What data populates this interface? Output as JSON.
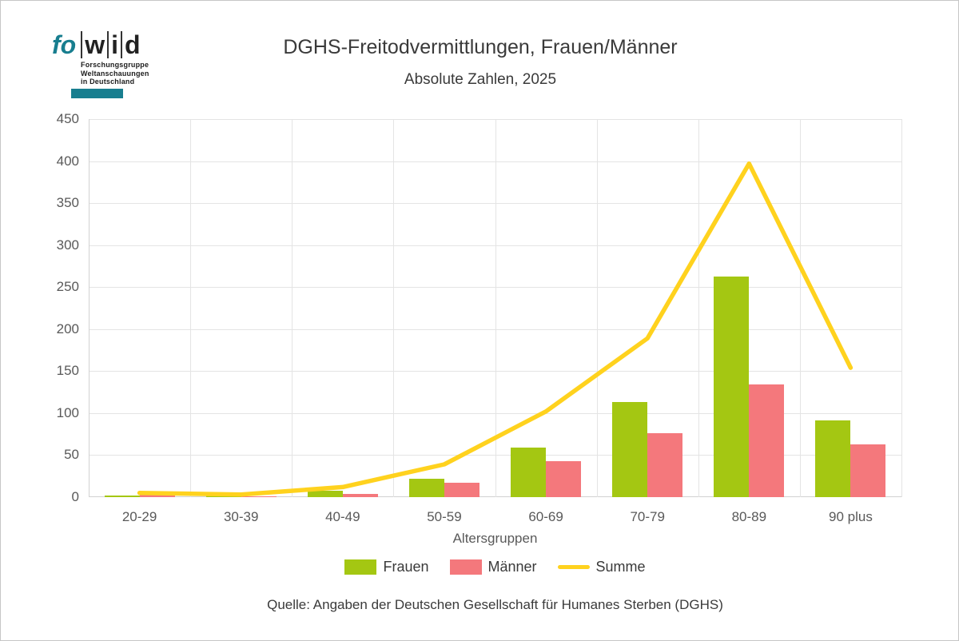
{
  "logo": {
    "prefix": "fo",
    "letters": [
      "w",
      "i",
      "d"
    ],
    "subtitle_lines": [
      "Forschungsgruppe",
      "Weltanschauungen",
      "in Deutschland"
    ]
  },
  "header": {
    "title": "DGHS-Freitodvermittlungen, Frauen/Männer",
    "subtitle": "Absolute Zahlen, 2025"
  },
  "chart_data": {
    "type": "bar",
    "title": "DGHS-Freitodvermittlungen, Frauen/Männer",
    "subtitle": "Absolute Zahlen, 2025",
    "categories": [
      "20-29",
      "30-39",
      "40-49",
      "50-59",
      "60-69",
      "70-79",
      "80-89",
      "90 plus"
    ],
    "series": [
      {
        "name": "Frauen",
        "type": "bar",
        "color": "#a4c712",
        "values": [
          2,
          2,
          8,
          22,
          59,
          113,
          263,
          91
        ]
      },
      {
        "name": "Männer",
        "type": "bar",
        "color": "#f4787c",
        "values": [
          3,
          1,
          4,
          17,
          43,
          76,
          134,
          63
        ]
      },
      {
        "name": "Summe",
        "type": "line",
        "color": "#ffd21e",
        "values": [
          5,
          3,
          12,
          39,
          102,
          189,
          397,
          154
        ]
      }
    ],
    "xlabel": "Altersgruppen",
    "ylabel": "",
    "ylim": [
      0,
      450
    ],
    "ytick_step": 50,
    "grid": true,
    "legend_position": "bottom"
  },
  "footer": {
    "source": "Quelle: Angaben der Deutschen Gesellschaft für Humanes Sterben (DGHS)"
  },
  "colors": {
    "frauen": "#a4c712",
    "maenner": "#f4787c",
    "summe": "#ffd21e",
    "logo_teal": "#187e8f",
    "grid": "#e4e4e4",
    "axis": "#d2d2d2",
    "tick_text": "#595959",
    "text": "#3a3a3a"
  }
}
